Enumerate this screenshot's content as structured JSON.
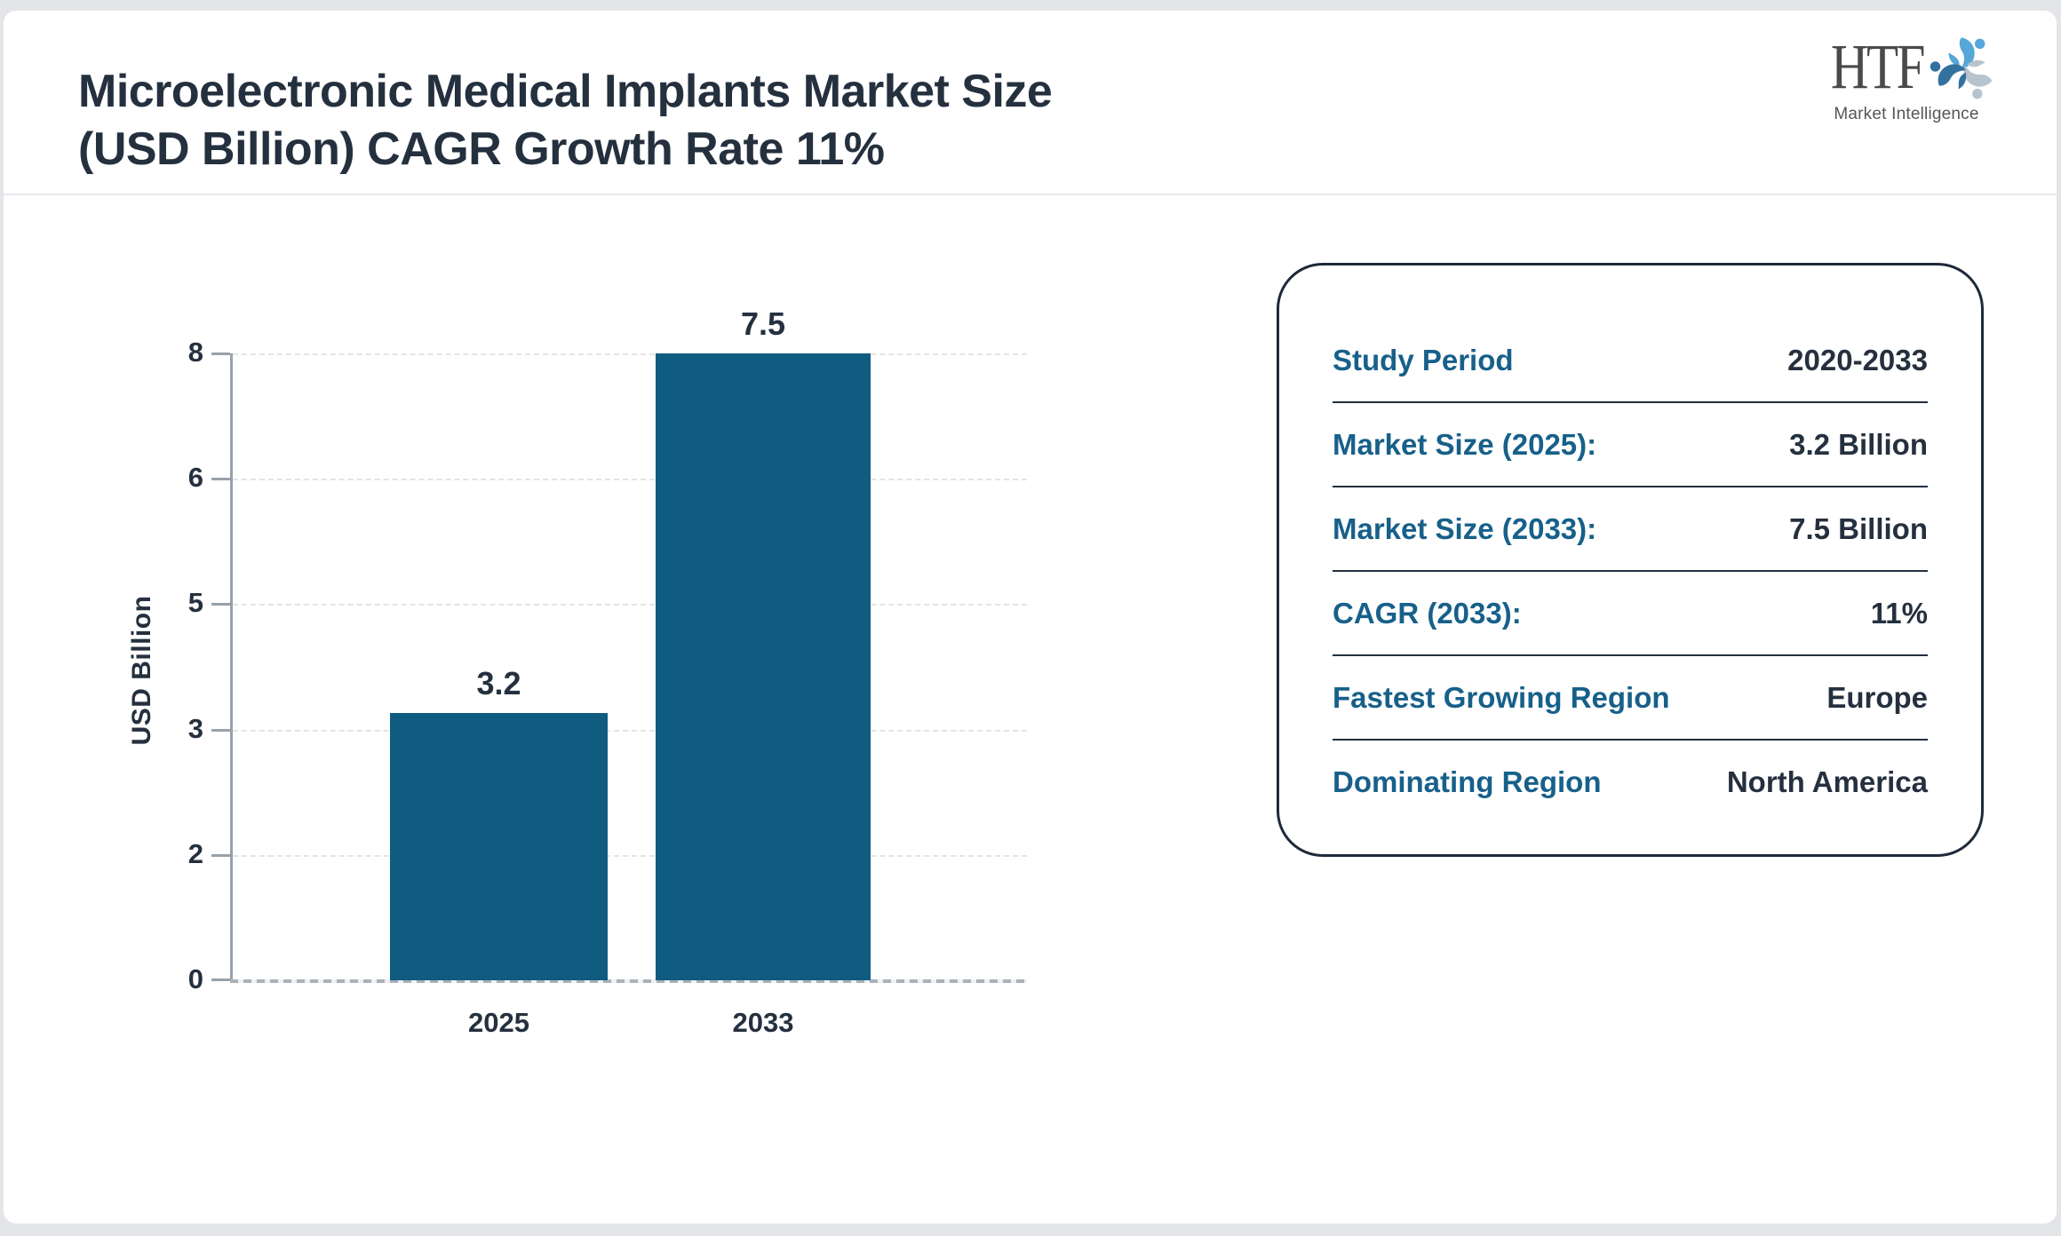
{
  "header": {
    "title_line1": "Microelectronic Medical Implants Market Size",
    "title_line2": "(USD Billion) CAGR Growth Rate 11%"
  },
  "logo": {
    "name": "HTF",
    "subtitle": "Market Intelligence",
    "icon": "three-figures-swirl-icon",
    "colors": {
      "light_blue": "#55a6d9",
      "gray_blue": "#b7c3cd",
      "dark_blue": "#33719f",
      "text_gray": "#4a4a4c"
    }
  },
  "chart_data": {
    "type": "bar",
    "title": "Microelectronic Medical Implants Market Size (USD Billion) CAGR Growth Rate 11%",
    "categories": [
      "2025",
      "2033"
    ],
    "values": [
      3.2,
      7.5
    ],
    "value_labels": [
      "3.2",
      "7.5"
    ],
    "xlabel": "",
    "ylabel": "USD Billion",
    "ytick_labels_top_to_bottom": [
      "8",
      "6",
      "5",
      "3",
      "2",
      "0"
    ],
    "yticks_displayed": [
      0,
      2,
      3,
      5,
      6,
      8
    ],
    "bar_scale_max": 7.5,
    "grid": "horizontal-dashed",
    "legend": "none",
    "bar_color": "#0f5c80",
    "axis_color": "#98a1ab",
    "text_color": "#25303f"
  },
  "panel": {
    "rows": [
      {
        "label": "Study Period",
        "value": "2020-2033"
      },
      {
        "label": "Market Size (2025):",
        "value": "3.2 Billion"
      },
      {
        "label": "Market Size (2033):",
        "value": "7.5 Billion"
      },
      {
        "label": "CAGR (2033):",
        "value": "11%"
      },
      {
        "label": "Fastest Growing Region",
        "value": "Europe"
      },
      {
        "label": "Dominating Region",
        "value": "North America"
      }
    ],
    "border_color": "#1e2a39",
    "label_color": "#17608a",
    "value_color": "#25303f"
  }
}
